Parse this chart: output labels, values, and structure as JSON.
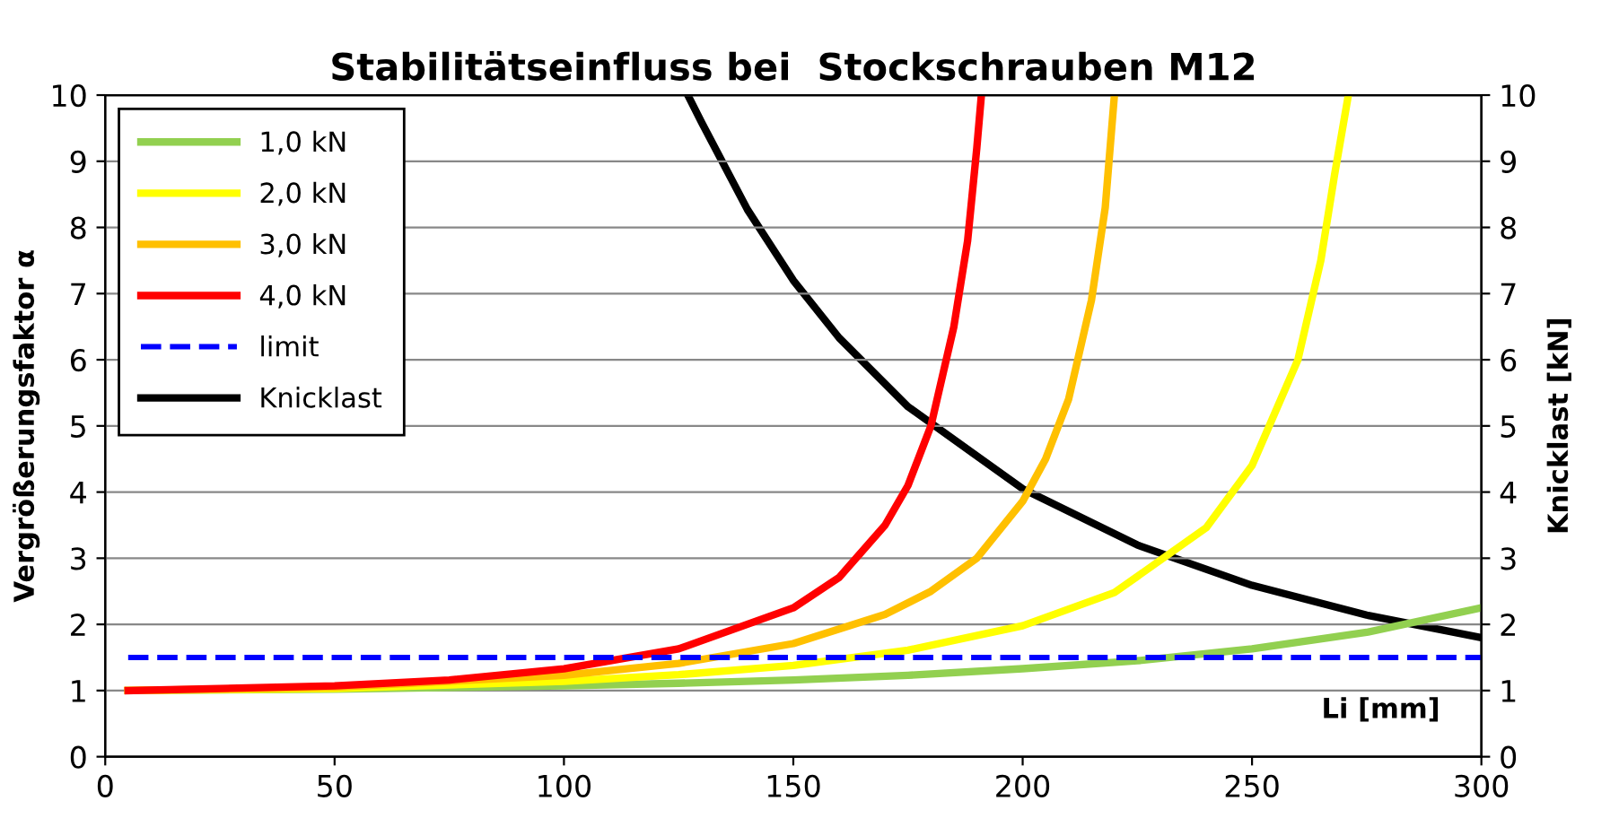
{
  "chart_data": {
    "type": "line",
    "title": "Stabilitätseinfluss bei  Stockschrauben M12",
    "xlabel": "Li [mm]",
    "ylabel": "Vergrößerungsfaktor α",
    "y2label": "Knicklast [kN]",
    "xlim": [
      0,
      300
    ],
    "xticks": [
      0,
      50,
      100,
      150,
      200,
      250,
      300
    ],
    "ylim": [
      0,
      10
    ],
    "yticks": [
      0,
      1,
      2,
      3,
      4,
      5,
      6,
      7,
      8,
      9,
      10
    ],
    "y2lim": [
      0,
      10
    ],
    "y2ticks": [
      0,
      1,
      2,
      3,
      4,
      5,
      6,
      7,
      8,
      9,
      10
    ],
    "grid": "y",
    "legend": "top left",
    "marker": "none",
    "line_style": "solid",
    "series": [
      {
        "name": "1,0 kN",
        "color": "#92d050",
        "x": [
          5,
          50,
          100,
          125,
          150,
          175,
          200,
          225,
          250,
          275,
          300
        ],
        "values": [
          1.0,
          1.02,
          1.07,
          1.11,
          1.16,
          1.23,
          1.33,
          1.45,
          1.63,
          1.88,
          2.25
        ]
      },
      {
        "name": "2,0 kN",
        "color": "#ffff00",
        "x": [
          5,
          50,
          100,
          125,
          150,
          175,
          200,
          220,
          240,
          250,
          260,
          265,
          268,
          271
        ],
        "values": [
          1.0,
          1.03,
          1.14,
          1.24,
          1.38,
          1.61,
          1.98,
          2.48,
          3.46,
          4.4,
          6.0,
          7.5,
          8.8,
          10
        ]
      },
      {
        "name": "3,0 kN",
        "color": "#ffc000",
        "x": [
          5,
          50,
          100,
          125,
          150,
          170,
          180,
          190,
          200,
          205,
          210,
          215,
          218,
          220
        ],
        "values": [
          1.0,
          1.05,
          1.23,
          1.41,
          1.71,
          2.15,
          2.5,
          3.0,
          3.86,
          4.5,
          5.4,
          6.9,
          8.3,
          10
        ]
      },
      {
        "name": "4,0 kN",
        "color": "#ff0000",
        "x": [
          5,
          50,
          75,
          100,
          125,
          150,
          160,
          170,
          175,
          180,
          185,
          188,
          190,
          191
        ],
        "values": [
          1.0,
          1.07,
          1.16,
          1.33,
          1.63,
          2.25,
          2.71,
          3.5,
          4.1,
          5.0,
          6.5,
          7.8,
          9.2,
          10
        ]
      },
      {
        "name": "limit",
        "color": "#0000ff",
        "line_style": "dashed",
        "x": [
          5,
          300
        ],
        "values": [
          1.5,
          1.5
        ]
      },
      {
        "name": "Knicklast",
        "color": "#000000",
        "axis": "y2",
        "x": [
          127,
          130,
          140,
          150,
          160,
          175,
          200,
          225,
          250,
          275,
          300
        ],
        "values": [
          10.0,
          9.59,
          8.27,
          7.2,
          6.33,
          5.29,
          4.05,
          3.2,
          2.59,
          2.14,
          1.8
        ]
      }
    ]
  }
}
